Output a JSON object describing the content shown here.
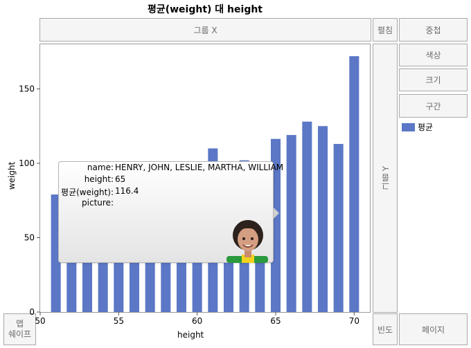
{
  "chart_data": {
    "type": "bar",
    "title": "평균(weight) 대 height",
    "xlabel": "height",
    "ylabel": "weight",
    "xlim": [
      50,
      71
    ],
    "ylim": [
      0,
      180
    ],
    "xticks": [
      50,
      55,
      60,
      65,
      70
    ],
    "yticks": [
      0,
      50,
      100,
      150
    ],
    "series": [
      {
        "name": "평균",
        "color": "#5b77c6",
        "x": [
          51,
          52,
          53,
          54,
          55,
          56,
          57,
          58,
          59,
          60,
          61,
          62,
          63,
          64,
          65,
          66,
          67,
          68,
          69,
          70
        ],
        "values": [
          79,
          65,
          64,
          64,
          65,
          66,
          84,
          72,
          84,
          92,
          110,
          98,
          102,
          99,
          116.4,
          119,
          128,
          125,
          113,
          172
        ]
      }
    ]
  },
  "zones": {
    "group_x": "그룹 X",
    "group_y": "그룹 Y",
    "wrap": "펼침",
    "overlay": "중첩",
    "color": "색상",
    "size": "크기",
    "interval": "구간",
    "freq": "빈도",
    "page": "페이지",
    "map_shape": "맵\n쉐이프"
  },
  "tooltip": {
    "rows": [
      {
        "key": "name:",
        "value": "HENRY, JOHN, LESLIE, MARTHA, WILLIAM"
      },
      {
        "key": "height:",
        "value": "65"
      },
      {
        "key": "평균(weight):",
        "value": "116.4"
      },
      {
        "key": "picture:",
        "value": ""
      }
    ]
  },
  "legend": {
    "label": "평균"
  }
}
